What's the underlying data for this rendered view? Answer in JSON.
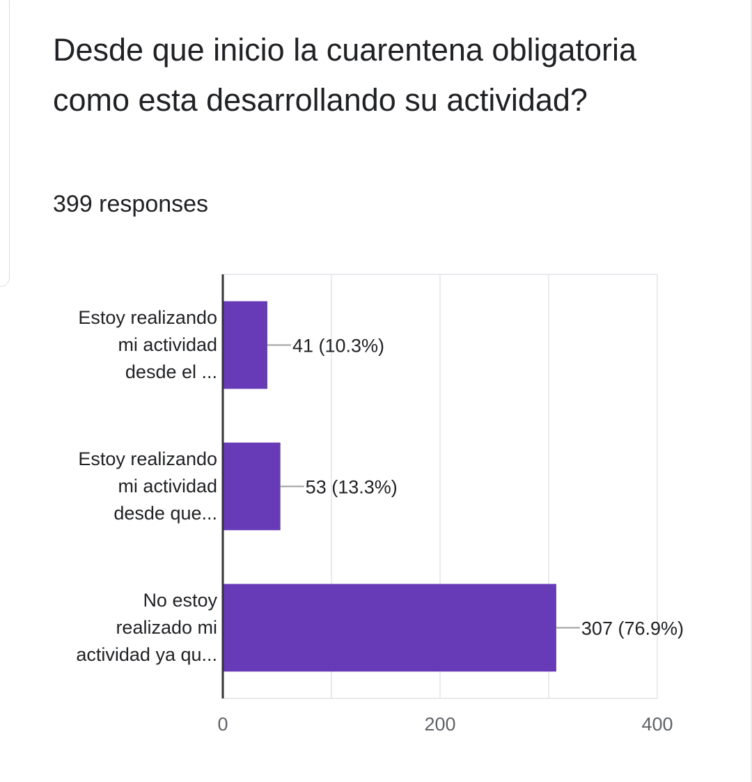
{
  "question": {
    "title": "Desde que inicio la cuarentena obligatoria como esta desarrollando su actividad?",
    "response_count": "399 responses"
  },
  "chart_data": {
    "type": "bar",
    "orientation": "horizontal",
    "categories": [
      [
        "Estoy realizando",
        "mi actividad",
        "desde el ..."
      ],
      [
        "Estoy realizando",
        "mi actividad",
        "desde que..."
      ],
      [
        "No estoy",
        "realizado mi",
        "actividad ya qu..."
      ]
    ],
    "values": [
      41,
      53,
      307
    ],
    "data_labels": [
      "41 (10.3%)",
      "53 (13.3%)",
      "307 (76.9%)"
    ],
    "xlim": [
      0,
      400
    ],
    "xticks": [
      "0",
      "200",
      "400"
    ],
    "grid": true,
    "bar_color": "#673ab7"
  }
}
